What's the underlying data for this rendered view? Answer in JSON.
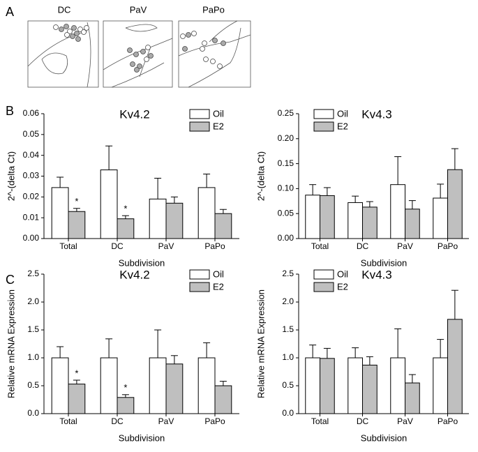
{
  "panel_labels": {
    "a": "A",
    "b": "B",
    "c": "C"
  },
  "diagram": {
    "labels": [
      "DC",
      "PaV",
      "PaPo"
    ]
  },
  "chart_data": [
    {
      "type": "bar",
      "title": "Kv4.2",
      "y_label": "2^-(delta Ct)",
      "x_label": "Subdivision",
      "categories": [
        "Total",
        "DC",
        "PaV",
        "PaPo"
      ],
      "series": [
        {
          "name": "Oil",
          "color": "#ffffff",
          "values": [
            0.0245,
            0.033,
            0.019,
            0.0245
          ],
          "errors": [
            0.005,
            0.0115,
            0.01,
            0.0065
          ]
        },
        {
          "name": "E2",
          "color": "#bfbfbf",
          "values": [
            0.013,
            0.0095,
            0.017,
            0.012
          ],
          "errors": [
            0.0015,
            0.0015,
            0.003,
            0.002
          ]
        }
      ],
      "ylim": [
        0,
        0.06
      ],
      "yticks": [
        {
          "value": 0,
          "label": "0.00"
        },
        0.01,
        0.02,
        0.03,
        0.04,
        0.05,
        0.06
      ],
      "legend": "upper right",
      "annotations": [
        {
          "text": "*",
          "series": "E2",
          "category": "Total"
        },
        {
          "text": "*",
          "series": "E2",
          "category": "DC"
        }
      ]
    },
    {
      "type": "bar",
      "title": "Kv4.3",
      "y_label": "2^-(delta Ct)",
      "x_label": "Subdivision",
      "categories": [
        "Total",
        "DC",
        "PaV",
        "PaPo"
      ],
      "series": [
        {
          "name": "Oil",
          "color": "#ffffff",
          "values": [
            0.087,
            0.072,
            0.108,
            0.081
          ],
          "errors": [
            0.021,
            0.013,
            0.056,
            0.028
          ]
        },
        {
          "name": "E2",
          "color": "#bfbfbf",
          "values": [
            0.086,
            0.063,
            0.059,
            0.138
          ],
          "errors": [
            0.016,
            0.011,
            0.017,
            0.042
          ]
        }
      ],
      "ylim": [
        0,
        0.25
      ],
      "yticks": [
        {
          "value": 0,
          "label": "0.00"
        },
        0.05,
        {
          "value": 0.1,
          "label": "0.10"
        },
        0.15,
        {
          "value": 0.2,
          "label": "0.20"
        },
        0.25
      ],
      "legend": "upper left",
      "annotations": []
    },
    {
      "type": "bar",
      "title": "Kv4.2",
      "y_label": "Relative mRNA Expression",
      "x_label": "Subdivision",
      "categories": [
        "Total",
        "DC",
        "PaV",
        "PaPo"
      ],
      "series": [
        {
          "name": "Oil",
          "color": "#ffffff",
          "values": [
            1,
            1,
            1,
            1
          ],
          "errors": [
            0.2,
            0.34,
            0.5,
            0.27
          ]
        },
        {
          "name": "E2",
          "color": "#bfbfbf",
          "values": [
            0.53,
            0.29,
            0.89,
            0.5
          ],
          "errors": [
            0.07,
            0.05,
            0.15,
            0.08
          ]
        }
      ],
      "ylim": [
        0,
        2.5
      ],
      "yticks": [
        {
          "value": 0,
          "label": "0.0"
        },
        0.5,
        {
          "value": 1,
          "label": "1.0"
        },
        1.5,
        {
          "value": 2,
          "label": "2.0"
        },
        2.5
      ],
      "legend": "upper right",
      "annotations": [
        {
          "text": "*",
          "series": "E2",
          "category": "Total"
        },
        {
          "text": "*",
          "series": "E2",
          "category": "DC"
        }
      ]
    },
    {
      "type": "bar",
      "title": "Kv4.3",
      "y_label": "Relative mRNA Expression",
      "x_label": "Subdivision",
      "categories": [
        "Total",
        "DC",
        "PaV",
        "PaPo"
      ],
      "series": [
        {
          "name": "Oil",
          "color": "#ffffff",
          "values": [
            1,
            1,
            1,
            1
          ],
          "errors": [
            0.23,
            0.18,
            0.52,
            0.33
          ]
        },
        {
          "name": "E2",
          "color": "#bfbfbf",
          "values": [
            0.99,
            0.87,
            0.55,
            1.69
          ],
          "errors": [
            0.18,
            0.15,
            0.15,
            0.52
          ]
        }
      ],
      "ylim": [
        0,
        2.5
      ],
      "yticks": [
        {
          "value": 0,
          "label": "0.0"
        },
        0.5,
        {
          "value": 1,
          "label": "1.0"
        },
        1.5,
        {
          "value": 2,
          "label": "2.0"
        },
        2.5
      ],
      "legend": "upper left",
      "annotations": []
    }
  ]
}
